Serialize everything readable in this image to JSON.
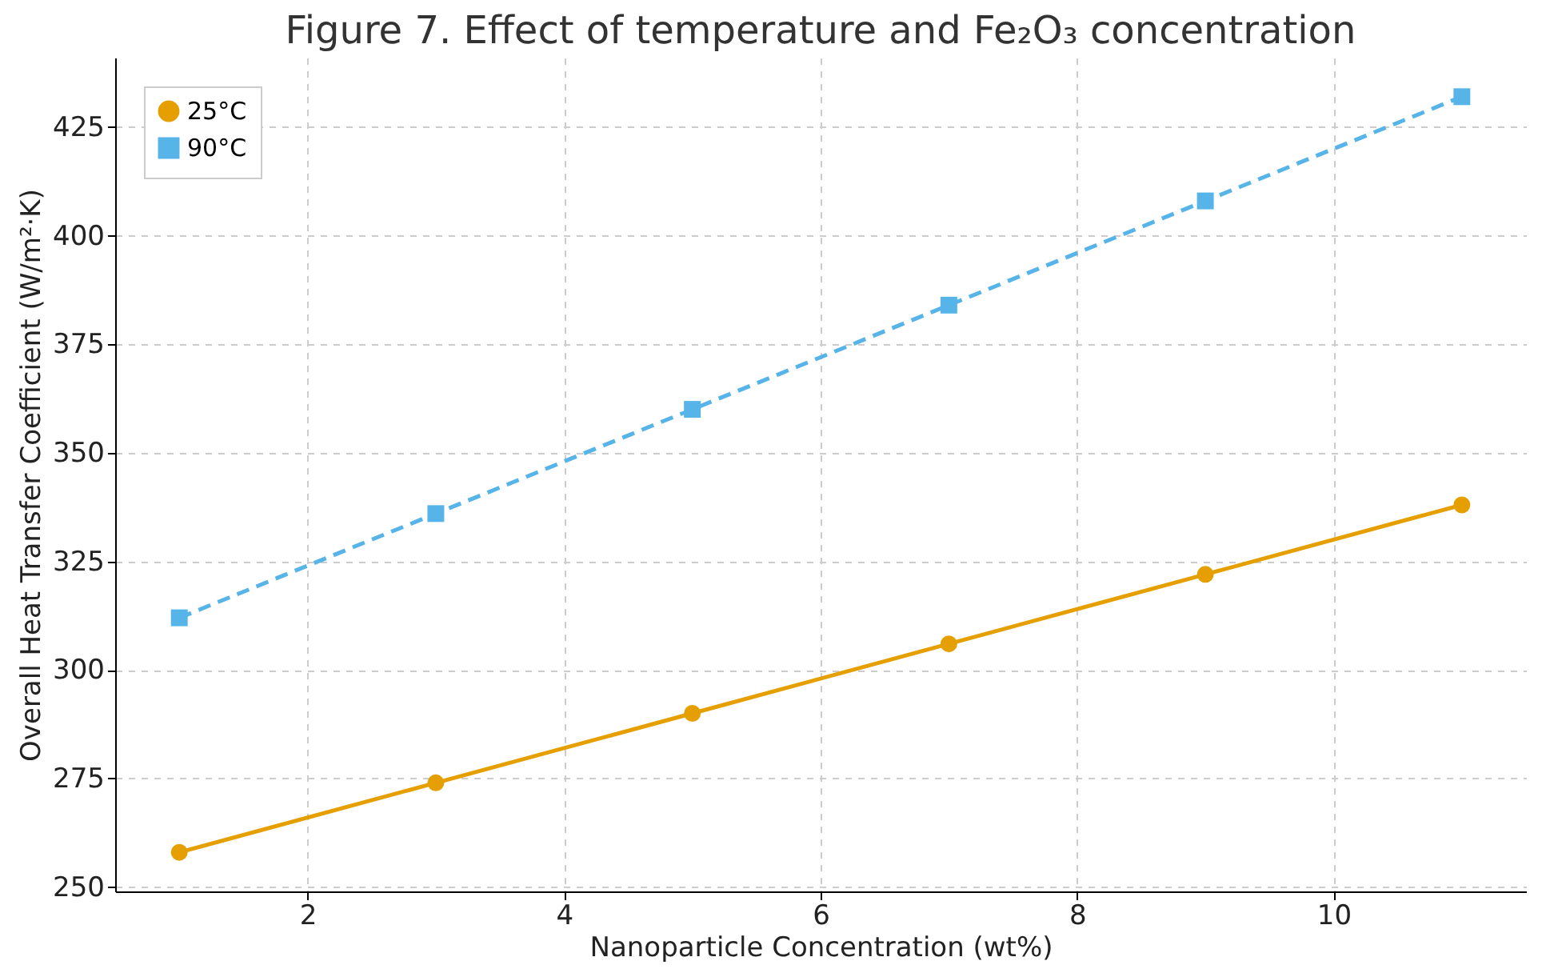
{
  "chart_data": {
    "type": "line",
    "title": "Figure 7. Effect of temperature and Fe₂O₃ concentration",
    "xlabel": "Nanoparticle Concentration (wt%)",
    "ylabel": "Overall Heat Transfer Coefficient (W/m²·K)",
    "x": [
      1,
      3,
      5,
      7,
      9,
      11
    ],
    "series": [
      {
        "name": "25°C",
        "color": "#e69f00",
        "marker": "circle",
        "line_style": "solid",
        "values": [
          258,
          274,
          290,
          306,
          322,
          338
        ]
      },
      {
        "name": "90°C",
        "color": "#56b4e9",
        "marker": "square",
        "line_style": "dashed",
        "values": [
          312,
          336,
          360,
          384,
          408,
          432
        ]
      }
    ],
    "xlim": [
      0.5,
      11.5
    ],
    "xticks": [
      2,
      4,
      6,
      8,
      10
    ],
    "ylim": [
      249,
      441
    ],
    "yticks": [
      250,
      275,
      300,
      325,
      350,
      375,
      400,
      425
    ],
    "grid": true,
    "legend": "top left"
  }
}
